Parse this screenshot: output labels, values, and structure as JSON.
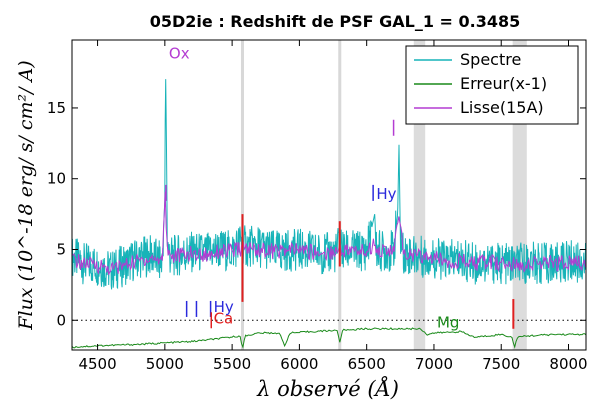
{
  "chart_data": {
    "type": "line",
    "title": "05D2ie : Redshift de PSF GAL_1 = 0.3485",
    "xlabel": "λ observé (Å)",
    "ylabel": "Flux (10^-18 erg/ s/ cm²/ A)",
    "xlim": [
      4310,
      8130
    ],
    "ylim": [
      -2.1,
      19.8
    ],
    "x_ticks": [
      4500,
      5000,
      5500,
      6000,
      6500,
      7000,
      7500,
      8000
    ],
    "y_ticks": [
      0,
      5,
      10,
      15
    ],
    "legend": {
      "placement": "top-right",
      "entries": [
        {
          "label": "Spectre",
          "color": "#17b3b8"
        },
        {
          "label": "Erreur(x-1)",
          "color": "#1a8a1a"
        },
        {
          "label": "Lisse(15A)",
          "color": "#b43cd2"
        }
      ]
    },
    "shaded_bands": [
      {
        "x0": 6850,
        "x1": 6935
      },
      {
        "x0": 7585,
        "x1": 7690
      }
    ],
    "sky_lines": [
      5577,
      6300
    ],
    "series": [
      {
        "name": "Spectre",
        "color": "#17b3b8",
        "x": [
          4310,
          4400,
          4500,
          4600,
          4700,
          4800,
          4900,
          4980,
          5000,
          5005,
          5010,
          5018,
          5025,
          5040,
          5100,
          5200,
          5300,
          5400,
          5500,
          5560,
          5580,
          5600,
          5700,
          5800,
          5900,
          6000,
          6100,
          6200,
          6280,
          6300,
          6320,
          6400,
          6500,
          6560,
          6570,
          6600,
          6650,
          6700,
          6730,
          6740,
          6750,
          6770,
          6800,
          6900,
          7000,
          7100,
          7200,
          7300,
          7400,
          7500,
          7600,
          7700,
          7800,
          7900,
          8000,
          8130
        ],
        "y": [
          4.5,
          4.0,
          3.9,
          3.5,
          3.9,
          4.4,
          4.6,
          4.0,
          8.5,
          17.8,
          14.0,
          6.0,
          5.0,
          4.5,
          4.6,
          4.8,
          4.7,
          5.0,
          4.9,
          5.5,
          5.4,
          5.2,
          5.2,
          4.9,
          4.9,
          5.0,
          4.8,
          4.7,
          4.8,
          6.0,
          4.9,
          4.9,
          4.9,
          7.5,
          5.0,
          4.9,
          4.9,
          4.9,
          7.5,
          12.4,
          6.0,
          4.8,
          4.7,
          4.5,
          4.4,
          4.2,
          4.3,
          4.0,
          4.1,
          4.0,
          3.9,
          4.1,
          4.0,
          4.0,
          4.2,
          4.0
        ]
      },
      {
        "name": "Erreur(x-1)",
        "color": "#1a8a1a",
        "x": [
          4310,
          4500,
          4800,
          5000,
          5200,
          5400,
          5560,
          5577,
          5595,
          5700,
          5850,
          5890,
          5930,
          6100,
          6280,
          6300,
          6320,
          6500,
          6700,
          6900,
          6950,
          7000,
          7200,
          7300,
          7500,
          7580,
          7600,
          7620,
          7700,
          7900,
          8130
        ],
        "y": [
          -1.9,
          -1.8,
          -1.7,
          -1.6,
          -1.5,
          -1.3,
          -1.1,
          -2.1,
          -1.1,
          -0.9,
          -0.9,
          -1.8,
          -0.9,
          -0.8,
          -0.7,
          -1.6,
          -0.7,
          -0.6,
          -0.6,
          -0.6,
          -1.0,
          -0.9,
          -0.8,
          -1.2,
          -1.0,
          -1.2,
          -1.9,
          -1.2,
          -1.1,
          -1.0,
          -1.0
        ]
      },
      {
        "name": "Lisse(15A)",
        "color": "#b43cd2",
        "x": [
          4310,
          4400,
          4500,
          4600,
          4700,
          4800,
          4900,
          4980,
          5005,
          5010,
          5025,
          5060,
          5100,
          5200,
          5300,
          5400,
          5500,
          5600,
          5700,
          5800,
          5900,
          6000,
          6100,
          6200,
          6300,
          6400,
          6500,
          6560,
          6600,
          6700,
          6740,
          6770,
          6800,
          6900,
          7000,
          7100,
          7200,
          7300,
          7400,
          7500,
          7600,
          7700,
          7800,
          7900,
          8000,
          8130
        ],
        "y": [
          4.3,
          4.0,
          3.9,
          3.6,
          3.9,
          4.2,
          4.4,
          4.2,
          9.5,
          6.5,
          4.8,
          4.5,
          4.6,
          4.7,
          4.6,
          4.9,
          4.9,
          5.1,
          5.0,
          4.9,
          4.9,
          5.0,
          4.8,
          4.7,
          5.0,
          4.9,
          4.9,
          5.4,
          4.9,
          4.9,
          7.4,
          5.0,
          4.7,
          4.5,
          4.4,
          4.2,
          4.2,
          4.0,
          4.1,
          4.0,
          3.9,
          4.0,
          4.0,
          4.0,
          4.1,
          4.0
        ]
      }
    ],
    "red_marks": [
      {
        "x": 5577,
        "y0": 1.3,
        "y1": 7.5
      },
      {
        "x": 6300,
        "y0": 3.8,
        "y1": 7.0
      },
      {
        "x": 7590,
        "y0": -0.6,
        "y1": 1.5
      }
    ],
    "line_labels": [
      {
        "text": "Ox",
        "x": 5008,
        "y": 18.9,
        "color": "#b43cd2"
      },
      {
        "text": "Hy",
        "x": 6550,
        "y": 9.0,
        "color": "#2a2adc"
      },
      {
        "text": "Hy",
        "x": 5340,
        "y": 1.0,
        "color": "#2a2adc"
      },
      {
        "text": "Ca",
        "x": 5340,
        "y": 0.2,
        "color": "#e02020"
      },
      {
        "text": "Mg",
        "x": 7000,
        "y": -0.1,
        "color": "#1a8a1a"
      }
    ],
    "line_ticks": [
      {
        "x": 5008,
        "y": 9.0,
        "color": "#b43cd2"
      },
      {
        "x": 6700,
        "y": 13.6,
        "color": "#b43cd2"
      },
      {
        "x": 6548,
        "y": 9.0,
        "color": "#2a2adc"
      },
      {
        "x": 5162,
        "y": 0.8,
        "color": "#2a2adc"
      },
      {
        "x": 5235,
        "y": 0.8,
        "color": "#2a2adc"
      },
      {
        "x": 5340,
        "y": 0.8,
        "color": "#2a2adc"
      },
      {
        "x": 5345,
        "y": 0.0,
        "color": "#e02020"
      }
    ],
    "zero_line": 0
  }
}
